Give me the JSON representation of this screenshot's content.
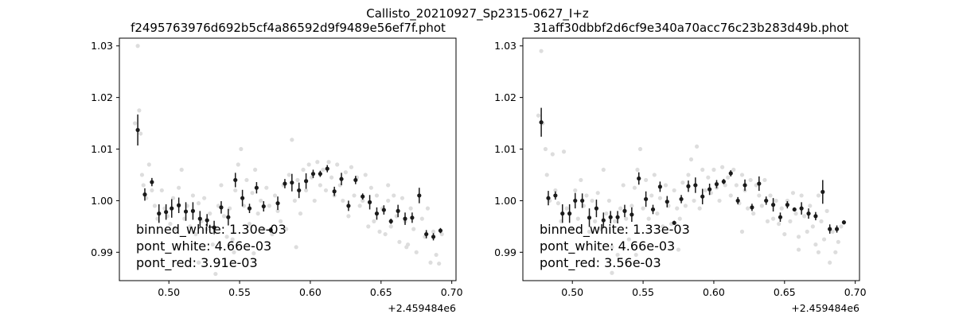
{
  "figure_title": "Callisto_20210927_Sp2315-0627_I+z",
  "chart_data": [
    {
      "type": "scatter",
      "title": "f2495763976d692b5cf4a86592d9f9489e56ef7f.phot",
      "xlabel": "",
      "ylabel": "",
      "x_offset_label": "+2.459484e6",
      "xlim": [
        0.465,
        0.703
      ],
      "ylim": [
        0.9845,
        1.0315
      ],
      "xticks": [
        0.5,
        0.55,
        0.6,
        0.65,
        0.7
      ],
      "xtick_labels": [
        "0.50",
        "0.55",
        "0.60",
        "0.65",
        "0.70"
      ],
      "yticks": [
        0.99,
        1.0,
        1.01,
        1.02,
        1.03
      ],
      "ytick_labels": [
        "0.99",
        "1.00",
        "1.01",
        "1.02",
        "1.03"
      ],
      "grid": false,
      "colors": {
        "raw": "#dddddd",
        "binned": "#1a1a1a"
      },
      "stats": [
        "binned_white: 1.30e-03",
        "pont_white: 4.66e-03",
        "pont_red: 3.91e-03"
      ],
      "binned": {
        "x": [
          0.478,
          0.483,
          0.488,
          0.493,
          0.498,
          0.502,
          0.507,
          0.512,
          0.517,
          0.522,
          0.527,
          0.532,
          0.537,
          0.542,
          0.547,
          0.552,
          0.557,
          0.562,
          0.567,
          0.572,
          0.577,
          0.582,
          0.587,
          0.592,
          0.597,
          0.602,
          0.607,
          0.612,
          0.617,
          0.622,
          0.627,
          0.632,
          0.637,
          0.642,
          0.647,
          0.652,
          0.657,
          0.662,
          0.667,
          0.672,
          0.677,
          0.682,
          0.687,
          0.692
        ],
        "y": [
          1.0137,
          1.0012,
          1.0036,
          0.9975,
          0.9978,
          0.9985,
          0.9991,
          0.9979,
          0.998,
          0.9965,
          0.9962,
          0.9948,
          0.9987,
          0.9968,
          1.004,
          1.0005,
          0.9985,
          1.0025,
          0.9989,
          0.9943,
          0.9995,
          1.0033,
          1.0035,
          1.002,
          1.0038,
          1.0052,
          1.0052,
          1.0062,
          1.0018,
          1.0042,
          0.999,
          1.004,
          1.0008,
          0.9997,
          0.9975,
          0.9982,
          0.996,
          0.998,
          0.9965,
          0.9967,
          1.001,
          0.9935,
          0.993,
          0.9942
        ],
        "err": [
          0.003,
          0.0012,
          0.0008,
          0.0018,
          0.0015,
          0.0018,
          0.0015,
          0.0018,
          0.0017,
          0.0015,
          0.0012,
          0.0013,
          0.0012,
          0.0016,
          0.0014,
          0.0016,
          0.0009,
          0.0011,
          0.001,
          0.0005,
          0.0013,
          0.0009,
          0.0017,
          0.0015,
          0.0015,
          0.0008,
          0.0006,
          0.0007,
          0.0009,
          0.0012,
          0.001,
          0.0008,
          0.0006,
          0.0014,
          0.0012,
          0.0009,
          0.0005,
          0.0012,
          0.0012,
          0.001,
          0.0015,
          0.0008,
          0.0007,
          0.0005
        ]
      },
      "raw_points": [
        [
          0.476,
          1.015
        ],
        [
          0.478,
          1.03
        ],
        [
          0.479,
          1.0175
        ],
        [
          0.48,
          1.013
        ],
        [
          0.481,
          1.005
        ],
        [
          0.482,
          1.003
        ],
        [
          0.484,
          1.0005
        ],
        [
          0.486,
          1.007
        ],
        [
          0.488,
          1.002
        ],
        [
          0.49,
          0.999
        ],
        [
          0.492,
          0.9965
        ],
        [
          0.495,
          1.002
        ],
        [
          0.497,
          0.9985
        ],
        [
          0.499,
          0.997
        ],
        [
          0.501,
          0.9955
        ],
        [
          0.503,
          1.0005
        ],
        [
          0.505,
          0.9945
        ],
        [
          0.507,
          1.0025
        ],
        [
          0.509,
          1.006
        ],
        [
          0.511,
          0.9965
        ],
        [
          0.513,
          0.999
        ],
        [
          0.515,
          0.995
        ],
        [
          0.517,
          1.001
        ],
        [
          0.519,
          0.9935
        ],
        [
          0.521,
          0.9995
        ],
        [
          0.523,
          0.996
        ],
        [
          0.525,
          1.0005
        ],
        [
          0.527,
          0.9945
        ],
        [
          0.529,
          0.9975
        ],
        [
          0.531,
          0.9915
        ],
        [
          0.533,
          0.9858
        ],
        [
          0.535,
          0.999
        ],
        [
          0.537,
          1.003
        ],
        [
          0.539,
          0.997
        ],
        [
          0.541,
          0.993
        ],
        [
          0.543,
          0.9985
        ],
        [
          0.545,
          0.9925
        ],
        [
          0.547,
          1.002
        ],
        [
          0.549,
          1.007
        ],
        [
          0.551,
          1.01
        ],
        [
          0.553,
          0.999
        ],
        [
          0.555,
          1.004
        ],
        [
          0.557,
          0.9955
        ],
        [
          0.559,
          1.0015
        ],
        [
          0.561,
          1.006
        ],
        [
          0.563,
          0.9975
        ],
        [
          0.565,
          1.0
        ],
        [
          0.567,
          0.9945
        ],
        [
          0.569,
          1.0025
        ],
        [
          0.571,
          0.999
        ],
        [
          0.573,
          0.9935
        ],
        [
          0.575,
          1.001
        ],
        [
          0.577,
          0.998
        ],
        [
          0.579,
          0.996
        ],
        [
          0.581,
          1.003
        ],
        [
          0.583,
          0.9945
        ],
        [
          0.585,
          1.005
        ],
        [
          0.587,
          1.0118
        ],
        [
          0.589,
          1.0
        ],
        [
          0.591,
          1.004
        ],
        [
          0.593,
          0.9975
        ],
        [
          0.595,
          1.006
        ],
        [
          0.597,
          1.002
        ],
        [
          0.599,
          1.007
        ],
        [
          0.601,
          1.0045
        ],
        [
          0.603,
          1.0
        ],
        [
          0.605,
          1.0075
        ],
        [
          0.607,
          1.003
        ],
        [
          0.609,
          1.006
        ],
        [
          0.611,
          1.002
        ],
        [
          0.613,
          1.0075
        ],
        [
          0.615,
          1.0045
        ],
        [
          0.617,
          1.001
        ],
        [
          0.619,
          1.007
        ],
        [
          0.621,
          1.003
        ],
        [
          0.623,
          1.0
        ],
        [
          0.625,
          1.0055
        ],
        [
          0.627,
          0.997
        ],
        [
          0.629,
          1.0065
        ],
        [
          0.631,
          1.001
        ],
        [
          0.633,
          1.0045
        ],
        [
          0.635,
          0.999
        ],
        [
          0.637,
          1.0
        ],
        [
          0.639,
          1.005
        ],
        [
          0.641,
          0.995
        ],
        [
          0.643,
          1.0025
        ],
        [
          0.645,
          0.996
        ],
        [
          0.647,
          1.001
        ],
        [
          0.649,
          0.994
        ],
        [
          0.651,
          0.9985
        ],
        [
          0.653,
          0.9935
        ],
        [
          0.655,
          1.0
        ],
        [
          0.657,
          0.995
        ],
        [
          0.659,
          1.001
        ],
        [
          0.661,
          0.997
        ],
        [
          0.663,
          0.992
        ],
        [
          0.665,
          1.0005
        ],
        [
          0.667,
          0.996
        ],
        [
          0.669,
          0.9915
        ],
        [
          0.671,
          0.9985
        ],
        [
          0.673,
          0.9945
        ],
        [
          0.675,
          0.99
        ],
        [
          0.677,
          1.001
        ],
        [
          0.679,
          0.9965
        ],
        [
          0.681,
          0.993
        ],
        [
          0.683,
          0.9985
        ],
        [
          0.685,
          0.988
        ],
        [
          0.687,
          0.994
        ],
        [
          0.689,
          0.9895
        ],
        [
          0.691,
          0.9878
        ],
        [
          0.693,
          0.9935
        ],
        [
          0.521,
          0.988
        ],
        [
          0.546,
          0.99
        ],
        [
          0.59,
          0.991
        ],
        [
          0.56,
          0.9898
        ],
        [
          0.655,
          1.003
        ],
        [
          0.668,
          0.991
        ]
      ]
    },
    {
      "type": "scatter",
      "title": "31aff30dbbf2d6cf9e340a70acc76c23b283d49b.phot",
      "xlabel": "",
      "ylabel": "",
      "x_offset_label": "+2.459484e6",
      "xlim": [
        0.465,
        0.703
      ],
      "ylim": [
        0.9845,
        1.0315
      ],
      "xticks": [
        0.5,
        0.55,
        0.6,
        0.65,
        0.7
      ],
      "xtick_labels": [
        "0.50",
        "0.55",
        "0.60",
        "0.65",
        "0.70"
      ],
      "yticks": [
        0.99,
        1.0,
        1.01,
        1.02,
        1.03
      ],
      "ytick_labels": [
        "0.99",
        "1.00",
        "1.01",
        "1.02",
        "1.03"
      ],
      "grid": false,
      "colors": {
        "raw": "#dddddd",
        "binned": "#1a1a1a"
      },
      "stats": [
        "binned_white: 1.33e-03",
        "pont_white: 4.66e-03",
        "pont_red: 3.56e-03"
      ],
      "binned": {
        "x": [
          0.478,
          0.483,
          0.488,
          0.493,
          0.498,
          0.502,
          0.507,
          0.512,
          0.517,
          0.522,
          0.527,
          0.532,
          0.537,
          0.542,
          0.547,
          0.552,
          0.557,
          0.562,
          0.567,
          0.572,
          0.577,
          0.582,
          0.587,
          0.592,
          0.597,
          0.602,
          0.607,
          0.612,
          0.617,
          0.622,
          0.627,
          0.632,
          0.637,
          0.642,
          0.647,
          0.652,
          0.657,
          0.662,
          0.667,
          0.672,
          0.677,
          0.682,
          0.687,
          0.692
        ],
        "y": [
          1.0152,
          1.0005,
          1.001,
          0.9975,
          0.9975,
          1.0,
          1.0,
          0.9967,
          0.9985,
          0.9962,
          0.9968,
          0.9968,
          0.998,
          0.9973,
          1.0043,
          1.0003,
          0.9983,
          1.0027,
          0.9998,
          0.9957,
          1.0003,
          1.0028,
          1.003,
          1.0008,
          1.0022,
          1.0032,
          1.0037,
          1.0053,
          1.0,
          1.003,
          0.9987,
          1.0033,
          1.0,
          0.9992,
          0.9968,
          0.9992,
          0.9983,
          0.9985,
          0.9975,
          0.997,
          1.0017,
          0.9945,
          0.9945,
          0.9958
        ],
        "err": [
          0.0028,
          0.0014,
          0.0008,
          0.0018,
          0.0018,
          0.0015,
          0.0014,
          0.0018,
          0.0017,
          0.0015,
          0.0012,
          0.0012,
          0.0012,
          0.0014,
          0.0012,
          0.0015,
          0.0009,
          0.001,
          0.0011,
          0.0004,
          0.0008,
          0.0011,
          0.0015,
          0.0015,
          0.0011,
          0.0008,
          0.0005,
          0.0006,
          0.0007,
          0.0011,
          0.0007,
          0.0014,
          0.0008,
          0.0013,
          0.0009,
          0.0007,
          0.0004,
          0.0012,
          0.001,
          0.0008,
          0.0023,
          0.0009,
          0.0007,
          0.0004
        ]
      },
      "raw_points": [
        [
          0.476,
          1.0165
        ],
        [
          0.478,
          1.029
        ],
        [
          0.479,
          1.015
        ],
        [
          0.481,
          1.01
        ],
        [
          0.482,
          1.005
        ],
        [
          0.484,
          1.0
        ],
        [
          0.486,
          1.009
        ],
        [
          0.488,
          1.002
        ],
        [
          0.49,
          0.9995
        ],
        [
          0.492,
          0.996
        ],
        [
          0.494,
          1.0095
        ],
        [
          0.496,
          0.9985
        ],
        [
          0.498,
          0.9975
        ],
        [
          0.5,
          0.9945
        ],
        [
          0.502,
          1.002
        ],
        [
          0.504,
          0.9965
        ],
        [
          0.506,
          1.004
        ],
        [
          0.508,
          0.999
        ],
        [
          0.51,
          1.001
        ],
        [
          0.512,
          0.994
        ],
        [
          0.514,
          1.0
        ],
        [
          0.516,
          0.996
        ],
        [
          0.518,
          1.0015
        ],
        [
          0.52,
          0.9945
        ],
        [
          0.522,
          1.006
        ],
        [
          0.524,
          0.9975
        ],
        [
          0.526,
          1.0
        ],
        [
          0.528,
          0.991
        ],
        [
          0.53,
          0.996
        ],
        [
          0.532,
          0.9895
        ],
        [
          0.534,
          0.9985
        ],
        [
          0.536,
          1.003
        ],
        [
          0.538,
          0.9965
        ],
        [
          0.54,
          0.9925
        ],
        [
          0.542,
          0.999
        ],
        [
          0.544,
          1.0025
        ],
        [
          0.546,
          1.006
        ],
        [
          0.548,
          1.01
        ],
        [
          0.55,
          0.9985
        ],
        [
          0.552,
          1.004
        ],
        [
          0.554,
          0.9965
        ],
        [
          0.556,
          1.001
        ],
        [
          0.558,
          1.005
        ],
        [
          0.56,
          0.9975
        ],
        [
          0.562,
          1.0005
        ],
        [
          0.564,
          0.995
        ],
        [
          0.566,
          1.003
        ],
        [
          0.568,
          0.999
        ],
        [
          0.57,
          0.9955
        ],
        [
          0.572,
          1.002
        ],
        [
          0.574,
          0.9985
        ],
        [
          0.576,
          0.9965
        ],
        [
          0.578,
          1.0035
        ],
        [
          0.58,
          0.999
        ],
        [
          0.582,
          1.005
        ],
        [
          0.584,
          1.008
        ],
        [
          0.586,
          1.0
        ],
        [
          0.588,
          1.0105
        ],
        [
          0.59,
          0.9985
        ],
        [
          0.592,
          1.006
        ],
        [
          0.594,
          1.002
        ],
        [
          0.596,
          1.0045
        ],
        [
          0.598,
          1.0015
        ],
        [
          0.6,
          1.006
        ],
        [
          0.602,
          1.0025
        ],
        [
          0.604,
          1.0
        ],
        [
          0.606,
          1.0065
        ],
        [
          0.608,
          1.003
        ],
        [
          0.61,
          1.0045
        ],
        [
          0.612,
          1.001
        ],
        [
          0.614,
          1.006
        ],
        [
          0.616,
          1.003
        ],
        [
          0.618,
          0.9995
        ],
        [
          0.62,
          1.005
        ],
        [
          0.622,
          1.002
        ],
        [
          0.624,
          0.9985
        ],
        [
          0.626,
          1.004
        ],
        [
          0.628,
          0.9975
        ],
        [
          0.63,
          1.003
        ],
        [
          0.632,
          1.001
        ],
        [
          0.634,
          0.999
        ],
        [
          0.636,
          1.004
        ],
        [
          0.638,
          0.996
        ],
        [
          0.64,
          1.001
        ],
        [
          0.642,
          0.9965
        ],
        [
          0.644,
          1.0
        ],
        [
          0.646,
          0.9955
        ],
        [
          0.648,
          0.9985
        ],
        [
          0.65,
          0.9935
        ],
        [
          0.652,
          1.0
        ],
        [
          0.654,
          0.996
        ],
        [
          0.656,
          1.0015
        ],
        [
          0.658,
          0.9975
        ],
        [
          0.66,
          0.993
        ],
        [
          0.662,
          1.001
        ],
        [
          0.664,
          0.997
        ],
        [
          0.666,
          0.994
        ],
        [
          0.668,
          0.999
        ],
        [
          0.67,
          0.995
        ],
        [
          0.672,
          0.9915
        ],
        [
          0.674,
          1.001
        ],
        [
          0.676,
          0.996
        ],
        [
          0.678,
          0.9925
        ],
        [
          0.68,
          0.998
        ],
        [
          0.682,
          0.988
        ],
        [
          0.684,
          0.994
        ],
        [
          0.686,
          0.99
        ],
        [
          0.688,
          0.992
        ],
        [
          0.69,
          0.995
        ],
        [
          0.528,
          0.986
        ],
        [
          0.545,
          0.9895
        ],
        [
          0.575,
          0.9905
        ],
        [
          0.62,
          0.994
        ],
        [
          0.66,
          0.9905
        ],
        [
          0.674,
          0.99
        ]
      ]
    }
  ]
}
